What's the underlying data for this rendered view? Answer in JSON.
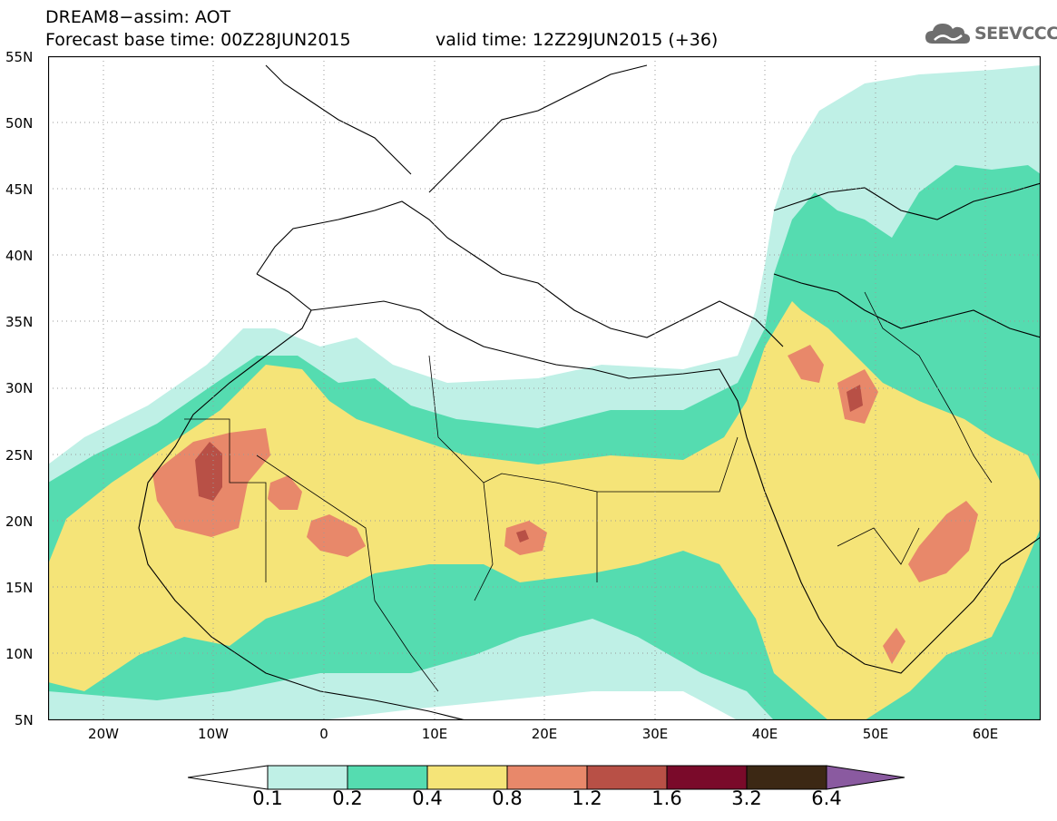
{
  "header": {
    "title_line1": "DREAM8−assim: AOT",
    "title_line2": "Forecast base time: 00Z28JUN2015",
    "valid_time": "valid time: 12Z29JUN2015 (+36)"
  },
  "logo": {
    "text": "SEEVCCC",
    "icon": "cloud-icon",
    "color": "#6e6e6e"
  },
  "map": {
    "lat_labels": [
      "55N",
      "50N",
      "45N",
      "40N",
      "35N",
      "30N",
      "25N",
      "20N",
      "15N",
      "10N",
      "5N"
    ],
    "lon_labels": [
      "20W",
      "10W",
      "0",
      "10E",
      "20E",
      "30E",
      "40E",
      "50E",
      "60E"
    ],
    "extent": {
      "lon": [
        -25,
        65
      ],
      "lat": [
        5,
        55
      ]
    },
    "gridlines": "dotted"
  },
  "colorbar": {
    "colors": [
      "#ffffff",
      "#bff0e6",
      "#55dcb0",
      "#f5e478",
      "#e8886a",
      "#b85046",
      "#7a0a2a",
      "#3c2814",
      "#8a5aa0"
    ],
    "labels": [
      "0.1",
      "0.2",
      "0.4",
      "0.8",
      "1.2",
      "1.6",
      "3.2",
      "6.4"
    ]
  }
}
